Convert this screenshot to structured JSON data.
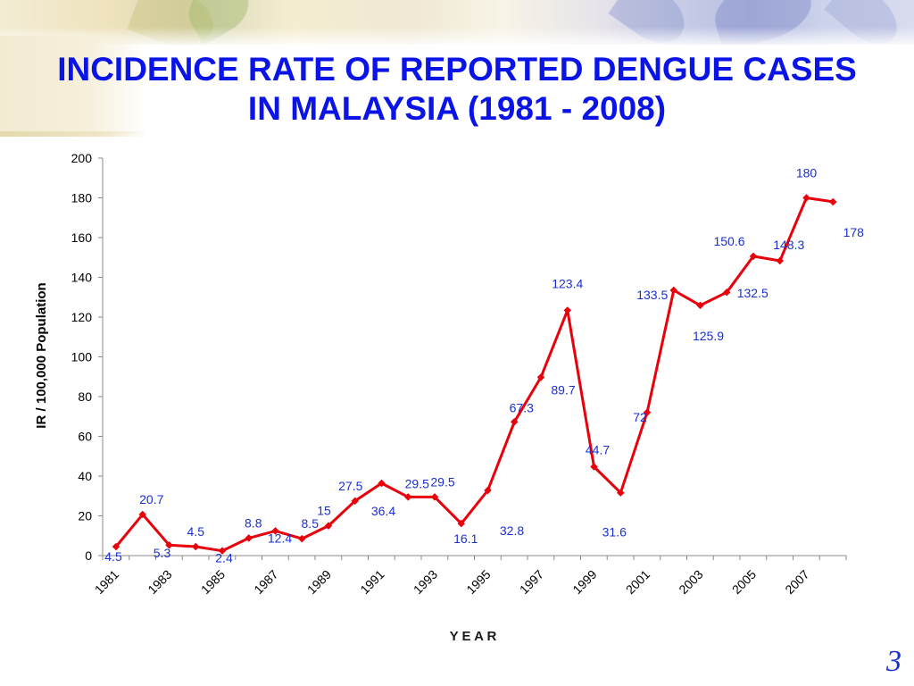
{
  "slide": {
    "title_line1": "INCIDENCE RATE OF REPORTED DENGUE CASES",
    "title_line2": "IN MALAYSIA (1981 - 2008)",
    "page_number": "3"
  },
  "colors": {
    "title": "#0a14e6",
    "series": "#e8000b",
    "data_labels": "#1a2fd0",
    "axis_text": "#000000"
  },
  "chart_data": {
    "type": "line",
    "title": "",
    "xlabel": "Y E A R",
    "ylabel": "IR / 100,000 Population",
    "ylim": [
      0,
      200
    ],
    "yticks": [
      0,
      20,
      40,
      60,
      80,
      100,
      120,
      140,
      160,
      180,
      200
    ],
    "x": [
      1981,
      1982,
      1983,
      1984,
      1985,
      1986,
      1987,
      1988,
      1989,
      1990,
      1991,
      1992,
      1993,
      1994,
      1995,
      1996,
      1997,
      1998,
      1999,
      2000,
      2001,
      2002,
      2003,
      2004,
      2005,
      2006,
      2007,
      2008
    ],
    "x_tick_labels": [
      "1981",
      "1983",
      "1985",
      "1987",
      "1989",
      "1991",
      "1993",
      "1995",
      "1997",
      "1999",
      "2001",
      "2003",
      "2005",
      "2007"
    ],
    "series": [
      {
        "values": [
          4.5,
          20.7,
          5.3,
          4.5,
          2.4,
          8.8,
          12.4,
          8.5,
          15,
          27.5,
          36.4,
          29.5,
          29.5,
          16.1,
          32.8,
          67.3,
          89.7,
          123.4,
          44.7,
          31.6,
          72,
          133.5,
          125.9,
          132.5,
          150.6,
          148.3,
          180,
          178
        ]
      }
    ],
    "data_labels": [
      "4.5",
      "20.7",
      "5.3",
      "4.5",
      "2.4",
      "8.8",
      "12.4",
      "8.5",
      "15",
      "27.5",
      "36.4",
      "29.5",
      "29.5",
      "16.1",
      "32.8",
      "67.3",
      "89.7",
      "123.4",
      "44.7",
      "31.6",
      "72",
      "133.5",
      "125.9",
      "132.5",
      "150.6",
      "148.3",
      "180",
      "178"
    ],
    "grid": false,
    "legend": "none"
  }
}
